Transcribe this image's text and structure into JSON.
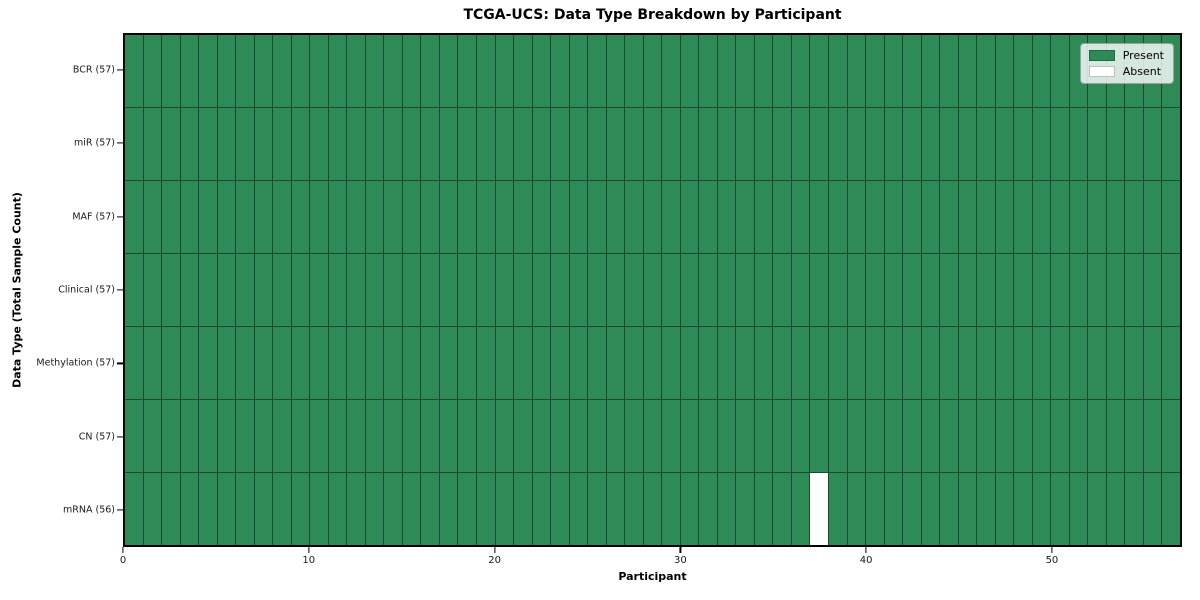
{
  "colors": {
    "present": "#2e8b57",
    "absent": "#ffffff",
    "grid_line": "#1a4a30",
    "frame": "#000000",
    "legend_border": "#9e9e9e"
  },
  "chart_data": {
    "type": "heatmap",
    "title": "TCGA-UCS: Data Type Breakdown by Participant",
    "xlabel": "Participant",
    "ylabel": "Data Type (Total Sample Count)",
    "n_participants": 57,
    "x_ticks": [
      0,
      10,
      20,
      30,
      40,
      50
    ],
    "rows": [
      {
        "label": "BCR (57)",
        "data_type": "BCR",
        "present_count": 57,
        "absent_indices": []
      },
      {
        "label": "miR (57)",
        "data_type": "miR",
        "present_count": 57,
        "absent_indices": []
      },
      {
        "label": "MAF (57)",
        "data_type": "MAF",
        "present_count": 57,
        "absent_indices": []
      },
      {
        "label": "Clinical (57)",
        "data_type": "Clinical",
        "present_count": 57,
        "absent_indices": []
      },
      {
        "label": "Methylation (57)",
        "data_type": "Methylation",
        "present_count": 57,
        "absent_indices": []
      },
      {
        "label": "CN (57)",
        "data_type": "CN",
        "present_count": 57,
        "absent_indices": []
      },
      {
        "label": "mRNA (56)",
        "data_type": "mRNA",
        "present_count": 56,
        "absent_indices": [
          37
        ]
      }
    ],
    "legend_entries": [
      "Present",
      "Absent"
    ],
    "legend_position": "upper right",
    "grid": true
  }
}
